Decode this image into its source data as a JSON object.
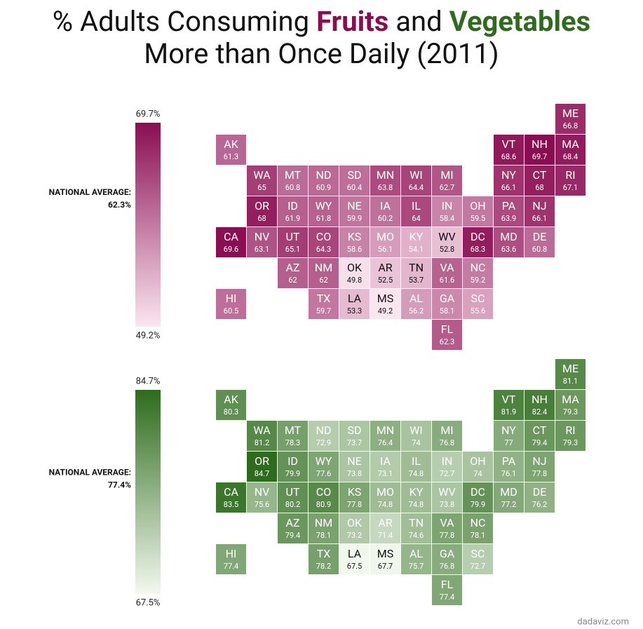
{
  "header": {
    "title": [
      "% Adults Consuming",
      "Fruits",
      "and",
      "Vegetables",
      "More than Once Daily (2011)"
    ]
  },
  "source": "dadaviz.com",
  "chart_data": [
    {
      "type": "tilemap",
      "states": [
        "ME",
        "AK",
        "VT",
        "NH",
        "MA",
        "WA",
        "MT",
        "ND",
        "SD",
        "MN",
        "WI",
        "MI",
        "NY",
        "CT",
        "RI",
        "OR",
        "ID",
        "WY",
        "NE",
        "IA",
        "IL",
        "IN",
        "OH",
        "PA",
        "NJ",
        "CA",
        "NV",
        "UT",
        "CO",
        "KS",
        "MO",
        "KY",
        "WV",
        "DC",
        "MD",
        "DE",
        "AZ",
        "NM",
        "OK",
        "AR",
        "TN",
        "VA",
        "NC",
        "HI",
        "TX",
        "LA",
        "MS",
        "AL",
        "GA",
        "SC",
        "FL"
      ],
      "values": [
        66.8,
        61.3,
        68.6,
        69.7,
        68.4,
        65,
        60.8,
        60.9,
        60.4,
        63.8,
        64.4,
        62.7,
        66.1,
        68,
        67.1,
        68,
        61.9,
        61.8,
        59.9,
        60.2,
        64,
        58.4,
        59.5,
        63.9,
        66.1,
        69.6,
        63.1,
        65.1,
        64.3,
        58.6,
        56.1,
        54.1,
        52.8,
        68.3,
        63.6,
        60.8,
        62,
        62,
        49.8,
        52.5,
        53.7,
        61.6,
        59.2,
        60.5,
        59.7,
        53.3,
        49.2,
        56.2,
        58.1,
        55.6,
        62.3
      ],
      "color_low": "#fbe6f0",
      "color_high": "#8a0d52",
      "vlim": [
        49.2,
        69.7
      ],
      "vticks": [
        {
          "value": 69.7,
          "label": "69.7%"
        },
        {
          "value": 49.2,
          "label": "49.2%"
        }
      ],
      "average_label": "NATIONAL AVERAGE:",
      "average": {
        "value": 62.3,
        "label": "62.3%"
      }
    },
    {
      "type": "tilemap",
      "states": [
        "ME",
        "AK",
        "VT",
        "NH",
        "MA",
        "WA",
        "MT",
        "ND",
        "SD",
        "MN",
        "WI",
        "MI",
        "NY",
        "CT",
        "RI",
        "OR",
        "ID",
        "WY",
        "NE",
        "IA",
        "IL",
        "IN",
        "OH",
        "PA",
        "NJ",
        "CA",
        "NV",
        "UT",
        "CO",
        "KS",
        "MO",
        "KY",
        "WV",
        "DC",
        "MD",
        "DE",
        "AZ",
        "NM",
        "OK",
        "AR",
        "TN",
        "VA",
        "NC",
        "HI",
        "TX",
        "LA",
        "MS",
        "AL",
        "GA",
        "SC",
        "FL"
      ],
      "values": [
        81.1,
        80.3,
        81.9,
        82.4,
        79.3,
        81.2,
        78.3,
        72.9,
        73.7,
        76.4,
        74,
        76.8,
        77,
        79.4,
        79.3,
        84.7,
        79.9,
        77.6,
        73.8,
        73.1,
        74.8,
        72.7,
        74,
        76.1,
        77.8,
        83.5,
        75.6,
        80.2,
        80.9,
        77.8,
        74.8,
        74.8,
        73.8,
        79.9,
        77.2,
        76.2,
        79.4,
        78.1,
        73.2,
        71.4,
        74.6,
        77.8,
        78.1,
        77.4,
        78.2,
        67.5,
        67.7,
        75.7,
        76.8,
        72.7,
        77.4
      ],
      "color_low": "#f3f8ef",
      "color_high": "#2e6b1d",
      "vlim": [
        67.5,
        84.7
      ],
      "vticks": [
        {
          "value": 84.7,
          "label": "84.7%"
        },
        {
          "value": 67.5,
          "label": "67.5%"
        }
      ],
      "average_label": "NATIONAL AVERAGE:",
      "average": {
        "value": 77.4,
        "label": "77.4%"
      }
    }
  ]
}
